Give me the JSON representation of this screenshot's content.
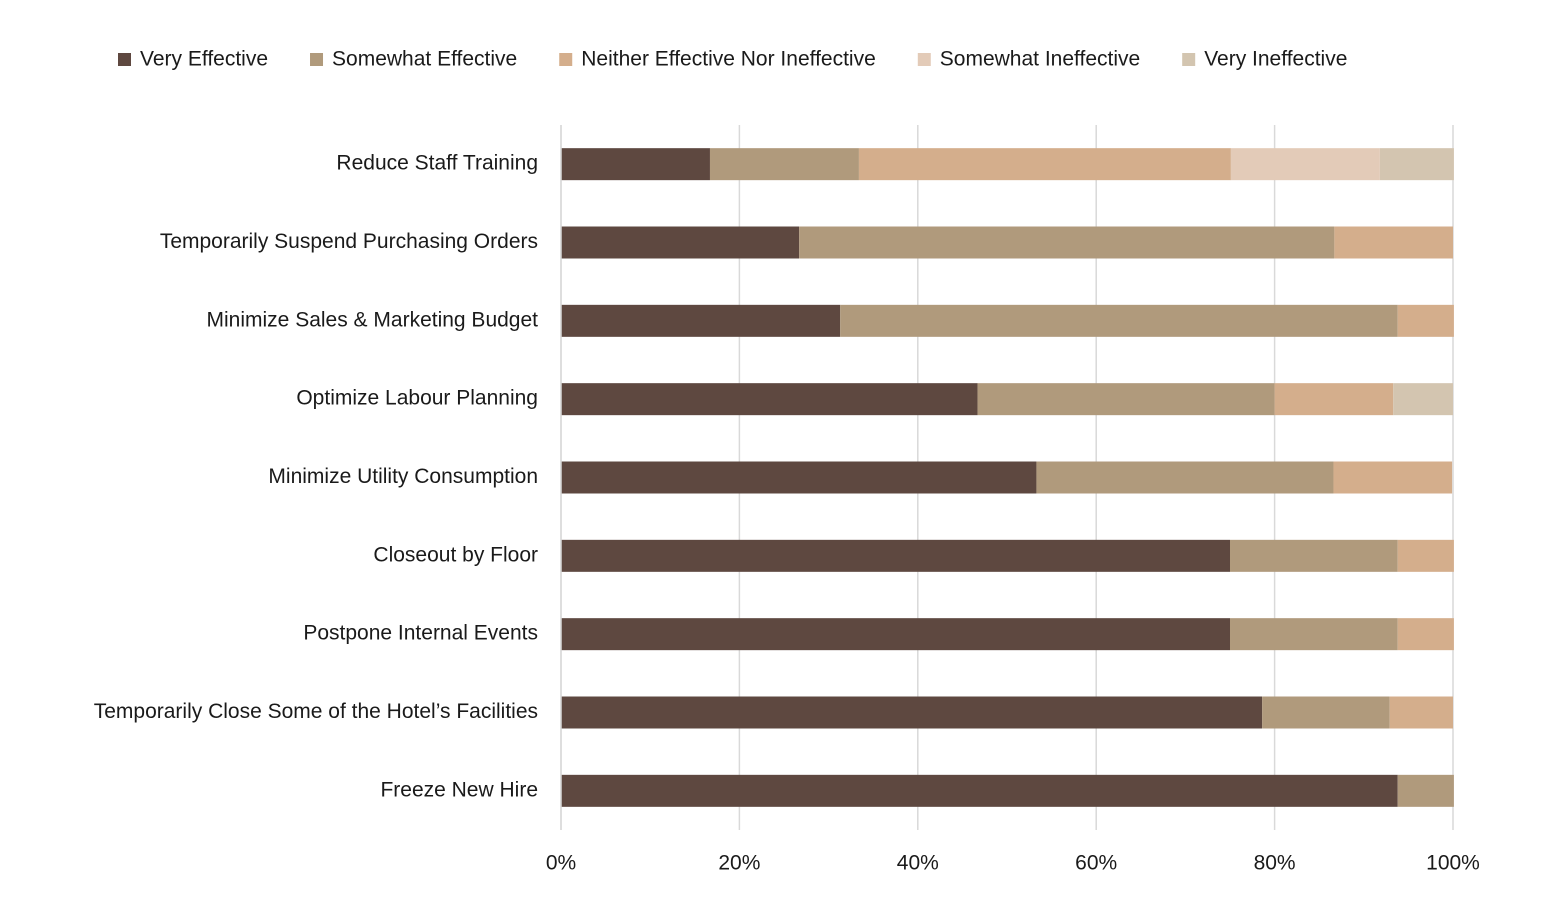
{
  "chart_data": {
    "type": "stacked-bar-horizontal",
    "categories": [
      "Reduce Staff Training",
      "Temporarily Suspend Purchasing Orders",
      "Minimize Sales & Marketing Budget",
      "Optimize Labour Planning",
      "Minimize Utility Consumption",
      "Closeout by Floor",
      "Postpone Internal Events",
      "Temporarily Close Some of the Hotel’s Facilities",
      "Freeze New Hire"
    ],
    "series": [
      {
        "name": "Very Effective",
        "color": "#5e4840",
        "values": [
          16.7,
          26.7,
          31.3,
          46.7,
          53.3,
          75,
          75,
          78.6,
          93.8
        ]
      },
      {
        "name": "Somewhat Effective",
        "color": "#b09a7c",
        "values": [
          16.7,
          60,
          62.5,
          33.3,
          33.3,
          18.8,
          18.8,
          14.3,
          6.3
        ]
      },
      {
        "name": "Neither Effective Nor Ineffective",
        "color": "#d4ae8c",
        "values": [
          41.7,
          13.3,
          6.3,
          13.3,
          13.3,
          6.3,
          6.3,
          7.1,
          0
        ]
      },
      {
        "name": "Somewhat Ineffective",
        "color": "#e3cbb8",
        "values": [
          16.7,
          0,
          0,
          0,
          0,
          0,
          0,
          0,
          0
        ]
      },
      {
        "name": "Very Ineffective",
        "color": "#d3c5b0",
        "values": [
          8.3,
          0,
          0,
          6.7,
          0,
          0,
          0,
          0,
          0
        ]
      }
    ],
    "xlim": [
      0,
      100
    ],
    "xticks": [
      {
        "value": 0,
        "label": "0%"
      },
      {
        "value": 20,
        "label": "20%"
      },
      {
        "value": 40,
        "label": "40%"
      },
      {
        "value": 60,
        "label": "60%"
      },
      {
        "value": 80,
        "label": "80%"
      },
      {
        "value": 100,
        "label": "100%"
      }
    ],
    "grid": true,
    "legend": "top"
  }
}
